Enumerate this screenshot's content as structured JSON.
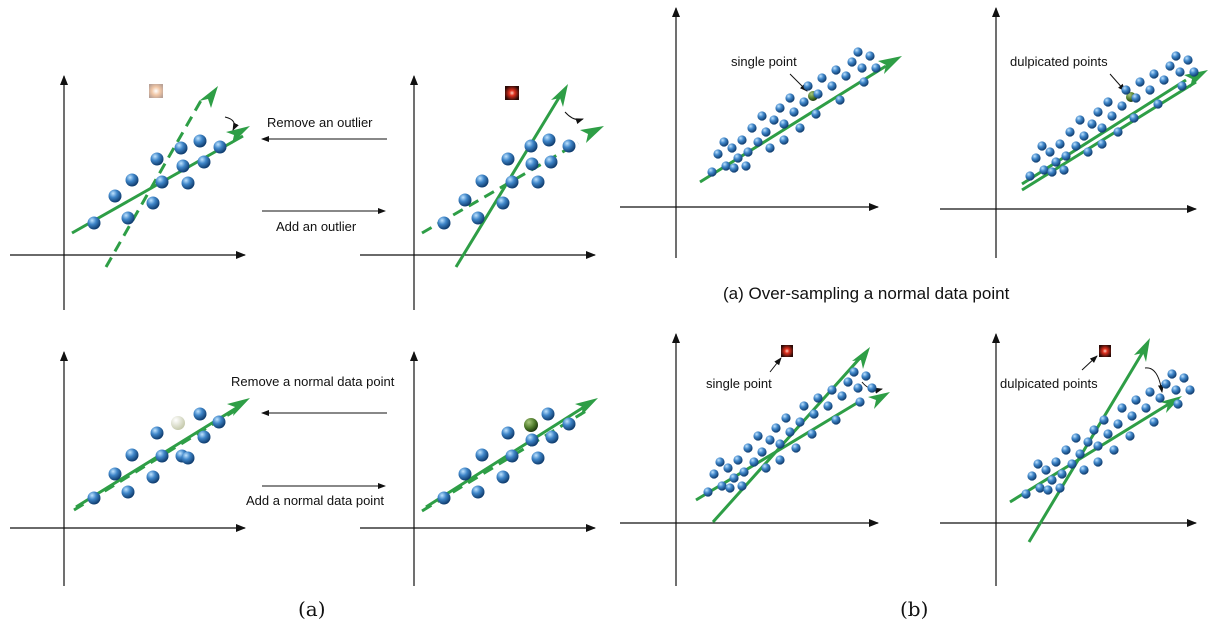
{
  "figure": {
    "left_caption": "(a)",
    "right_caption": "(b)",
    "right_subcaption": "(a) Over-sampling a normal data point"
  },
  "left_panel": {
    "remove_outlier": "Remove an outlier",
    "add_outlier": "Add an outlier",
    "remove_normal": "Remove a normal data point",
    "add_normal": "Add a normal data point"
  },
  "right_panel": {
    "top_left_note": "single point",
    "top_right_note": "dulpicated points",
    "bottom_left_note": "single point",
    "bottom_right_note": "dulpicated points"
  },
  "colors": {
    "axis": "#111111",
    "fit_line": "#2e9e46",
    "point": "#2f6fb0",
    "outlier": "#b22020",
    "removed_point": "#d8dcc8",
    "added_point": "#4f7a2e"
  }
}
